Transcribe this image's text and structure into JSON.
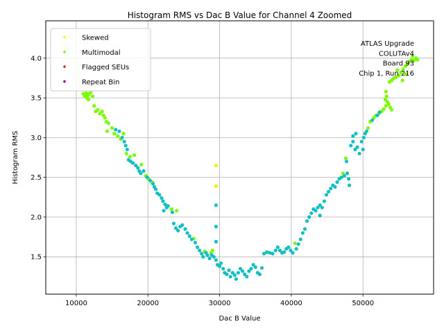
{
  "chart_data": {
    "type": "scatter",
    "title": "Histogram RMS vs Dac B Value for Channel 4 Zoomed",
    "xlabel": "Dac B Value",
    "ylabel": "Histogram RMS",
    "xlim": [
      5750,
      59850
    ],
    "ylim": [
      1.03,
      4.47
    ],
    "xticks": [
      10000,
      20000,
      30000,
      40000,
      50000
    ],
    "xtick_labels": [
      "10000",
      "20000",
      "30000",
      "40000",
      "50000"
    ],
    "yticks": [
      1.5,
      2.0,
      2.5,
      3.0,
      3.5,
      4.0
    ],
    "ytick_labels": [
      "1.5",
      "2.0",
      "2.5",
      "3.0",
      "3.5",
      "4.0"
    ],
    "grid": true,
    "legend": {
      "placement": "top-left",
      "entries": [
        {
          "label": "Skewed",
          "color": "#ffff00"
        },
        {
          "label": "Multimodal",
          "color": "#7fff00"
        },
        {
          "label": "Flagged SEUs",
          "color": "#dd2222"
        },
        {
          "label": "Repeat Bin",
          "color": "#880088"
        }
      ]
    },
    "annotation": [
      "ATLAS Upgrade",
      "COLUTAv4",
      "Board 93",
      "Chip 1, Run 216"
    ],
    "colors": {
      "pale": "#e6fadc",
      "lime": "#7cfc00",
      "teal": "#13bfc2",
      "yellow": "#f0f000"
    },
    "series": [
      {
        "name": "pale",
        "points": [
          [
            8600,
            4.25
          ],
          [
            9300,
            4.26
          ],
          [
            8700,
            4.15
          ],
          [
            9000,
            4.12
          ],
          [
            9200,
            4.05
          ],
          [
            9400,
            4.02
          ],
          [
            9600,
            3.98
          ],
          [
            9900,
            3.96
          ],
          [
            10100,
            3.92
          ],
          [
            9800,
            3.88
          ],
          [
            10300,
            3.86
          ],
          [
            10500,
            3.84
          ],
          [
            10200,
            3.8
          ],
          [
            10600,
            3.78
          ],
          [
            10400,
            3.72
          ],
          [
            10800,
            3.7
          ],
          [
            10700,
            3.65
          ],
          [
            10900,
            3.62
          ],
          [
            11000,
            3.58
          ],
          [
            8400,
            4.18
          ],
          [
            9700,
            4.08
          ],
          [
            10000,
            3.75
          ],
          [
            11200,
            3.6
          ]
        ]
      },
      {
        "name": "lime",
        "points": [
          [
            11000,
            3.55
          ],
          [
            11200,
            3.52
          ],
          [
            11400,
            3.56
          ],
          [
            11600,
            3.53
          ],
          [
            11800,
            3.55
          ],
          [
            12000,
            3.57
          ],
          [
            11500,
            3.5
          ],
          [
            12300,
            3.52
          ],
          [
            11700,
            3.48
          ],
          [
            12500,
            3.4
          ],
          [
            12700,
            3.33
          ],
          [
            13000,
            3.35
          ],
          [
            13300,
            3.3
          ],
          [
            13600,
            3.33
          ],
          [
            13800,
            3.28
          ],
          [
            14000,
            3.25
          ],
          [
            14200,
            3.2
          ],
          [
            14500,
            3.18
          ],
          [
            14300,
            3.08
          ],
          [
            15000,
            3.12
          ],
          [
            15300,
            3.05
          ],
          [
            15800,
            3.02
          ],
          [
            16200,
            2.98
          ],
          [
            16600,
            3.05
          ],
          [
            17000,
            2.8
          ],
          [
            17500,
            2.76
          ],
          [
            18100,
            2.78
          ],
          [
            19100,
            2.66
          ],
          [
            19700,
            2.52
          ],
          [
            20100,
            2.48
          ],
          [
            20600,
            2.44
          ],
          [
            23300,
            2.1
          ],
          [
            24000,
            2.08
          ],
          [
            26400,
            1.73
          ],
          [
            27900,
            1.57
          ],
          [
            28800,
            1.55
          ],
          [
            29000,
            1.58
          ],
          [
            40500,
            1.67
          ],
          [
            47200,
            2.55
          ],
          [
            47600,
            2.74
          ],
          [
            50700,
            3.12
          ],
          [
            51000,
            3.2
          ],
          [
            51500,
            3.25
          ],
          [
            51800,
            3.28
          ],
          [
            52200,
            3.3
          ],
          [
            52600,
            3.33
          ],
          [
            52900,
            3.36
          ],
          [
            53200,
            3.4
          ],
          [
            53400,
            3.45
          ],
          [
            53600,
            3.42
          ],
          [
            53800,
            3.38
          ],
          [
            54000,
            3.35
          ],
          [
            53100,
            3.48
          ],
          [
            53300,
            3.52
          ],
          [
            53200,
            3.58
          ],
          [
            53700,
            3.7
          ],
          [
            54000,
            3.72
          ],
          [
            54300,
            3.75
          ],
          [
            54600,
            3.76
          ],
          [
            55000,
            3.78
          ],
          [
            55300,
            3.82
          ],
          [
            55600,
            3.86
          ],
          [
            55900,
            3.9
          ],
          [
            56200,
            3.93
          ],
          [
            56500,
            3.96
          ],
          [
            56800,
            3.98
          ],
          [
            57100,
            3.97
          ],
          [
            57400,
            4.0
          ],
          [
            56900,
            4.03
          ],
          [
            57600,
            3.98
          ],
          [
            54800,
            3.85
          ],
          [
            55500,
            3.72
          ],
          [
            56000,
            3.8
          ]
        ]
      },
      {
        "name": "teal",
        "points": [
          [
            15500,
            3.1
          ],
          [
            16000,
            3.08
          ],
          [
            16400,
            3.0
          ],
          [
            16700,
            2.95
          ],
          [
            16900,
            2.9
          ],
          [
            17100,
            2.85
          ],
          [
            17300,
            2.72
          ],
          [
            17600,
            2.7
          ],
          [
            17900,
            2.68
          ],
          [
            18300,
            2.65
          ],
          [
            18600,
            2.62
          ],
          [
            18800,
            2.58
          ],
          [
            19000,
            2.55
          ],
          [
            19400,
            2.58
          ],
          [
            19900,
            2.5
          ],
          [
            20300,
            2.46
          ],
          [
            20700,
            2.42
          ],
          [
            20900,
            2.38
          ],
          [
            21100,
            2.35
          ],
          [
            21300,
            2.3
          ],
          [
            21600,
            2.28
          ],
          [
            21900,
            2.24
          ],
          [
            22100,
            2.2
          ],
          [
            22400,
            2.16
          ],
          [
            22200,
            2.08
          ],
          [
            22600,
            2.12
          ],
          [
            22800,
            2.14
          ],
          [
            23400,
            2.06
          ],
          [
            23600,
            1.92
          ],
          [
            23900,
            1.86
          ],
          [
            24200,
            1.83
          ],
          [
            24500,
            1.88
          ],
          [
            24800,
            1.9
          ],
          [
            25200,
            1.85
          ],
          [
            25500,
            1.8
          ],
          [
            25800,
            1.76
          ],
          [
            26100,
            1.72
          ],
          [
            26600,
            1.68
          ],
          [
            26900,
            1.62
          ],
          [
            27200,
            1.58
          ],
          [
            27500,
            1.54
          ],
          [
            27700,
            1.5
          ],
          [
            28100,
            1.55
          ],
          [
            28300,
            1.52
          ],
          [
            28600,
            1.48
          ],
          [
            28900,
            1.52
          ],
          [
            29200,
            1.5
          ],
          [
            29500,
            1.46
          ],
          [
            29700,
            1.4
          ],
          [
            30000,
            1.38
          ],
          [
            30200,
            1.42
          ],
          [
            30500,
            1.35
          ],
          [
            30700,
            1.3
          ],
          [
            31000,
            1.28
          ],
          [
            31300,
            1.33
          ],
          [
            31500,
            1.25
          ],
          [
            31800,
            1.3
          ],
          [
            32100,
            1.27
          ],
          [
            32300,
            1.22
          ],
          [
            32600,
            1.3
          ],
          [
            32900,
            1.35
          ],
          [
            33200,
            1.32
          ],
          [
            33500,
            1.28
          ],
          [
            33800,
            1.25
          ],
          [
            34100,
            1.32
          ],
          [
            34400,
            1.35
          ],
          [
            34700,
            1.4
          ],
          [
            35000,
            1.37
          ],
          [
            35300,
            1.3
          ],
          [
            35600,
            1.28
          ],
          [
            35900,
            1.36
          ],
          [
            36200,
            1.54
          ],
          [
            36600,
            1.56
          ],
          [
            37000,
            1.55
          ],
          [
            37400,
            1.54
          ],
          [
            37800,
            1.58
          ],
          [
            38100,
            1.62
          ],
          [
            38400,
            1.58
          ],
          [
            38700,
            1.55
          ],
          [
            39000,
            1.56
          ],
          [
            39300,
            1.6
          ],
          [
            39600,
            1.62
          ],
          [
            39900,
            1.58
          ],
          [
            40200,
            1.55
          ],
          [
            40700,
            1.6
          ],
          [
            41000,
            1.66
          ],
          [
            41300,
            1.72
          ],
          [
            41600,
            1.8
          ],
          [
            41900,
            1.85
          ],
          [
            42200,
            1.95
          ],
          [
            42500,
            2.0
          ],
          [
            42800,
            2.05
          ],
          [
            43100,
            2.1
          ],
          [
            43400,
            2.08
          ],
          [
            43700,
            2.12
          ],
          [
            44000,
            2.15
          ],
          [
            44300,
            2.12
          ],
          [
            44600,
            2.2
          ],
          [
            44900,
            2.28
          ],
          [
            45200,
            2.32
          ],
          [
            45500,
            2.36
          ],
          [
            45800,
            2.4
          ],
          [
            46100,
            2.38
          ],
          [
            46400,
            2.44
          ],
          [
            46700,
            2.48
          ],
          [
            47000,
            2.5
          ],
          [
            47400,
            2.52
          ],
          [
            47800,
            2.55
          ],
          [
            48000,
            2.48
          ],
          [
            48100,
            2.4
          ],
          [
            47700,
            2.7
          ],
          [
            48300,
            2.9
          ],
          [
            48600,
            2.95
          ],
          [
            48900,
            2.85
          ],
          [
            49200,
            2.88
          ],
          [
            49500,
            2.8
          ],
          [
            49800,
            2.95
          ],
          [
            50100,
            3.0
          ],
          [
            50300,
            3.05
          ],
          [
            50500,
            3.08
          ],
          [
            50000,
            2.85
          ],
          [
            49000,
            3.05
          ],
          [
            51300,
            3.22
          ],
          [
            52000,
            3.28
          ],
          [
            52300,
            3.32
          ],
          [
            29500,
            2.15
          ],
          [
            29500,
            1.88
          ],
          [
            29500,
            1.69
          ],
          [
            44000,
            2.02
          ],
          [
            48600,
            3.02
          ]
        ]
      },
      {
        "name": "yellow",
        "points": [
          [
            29500,
            2.65
          ],
          [
            29500,
            2.39
          ]
        ]
      }
    ]
  }
}
